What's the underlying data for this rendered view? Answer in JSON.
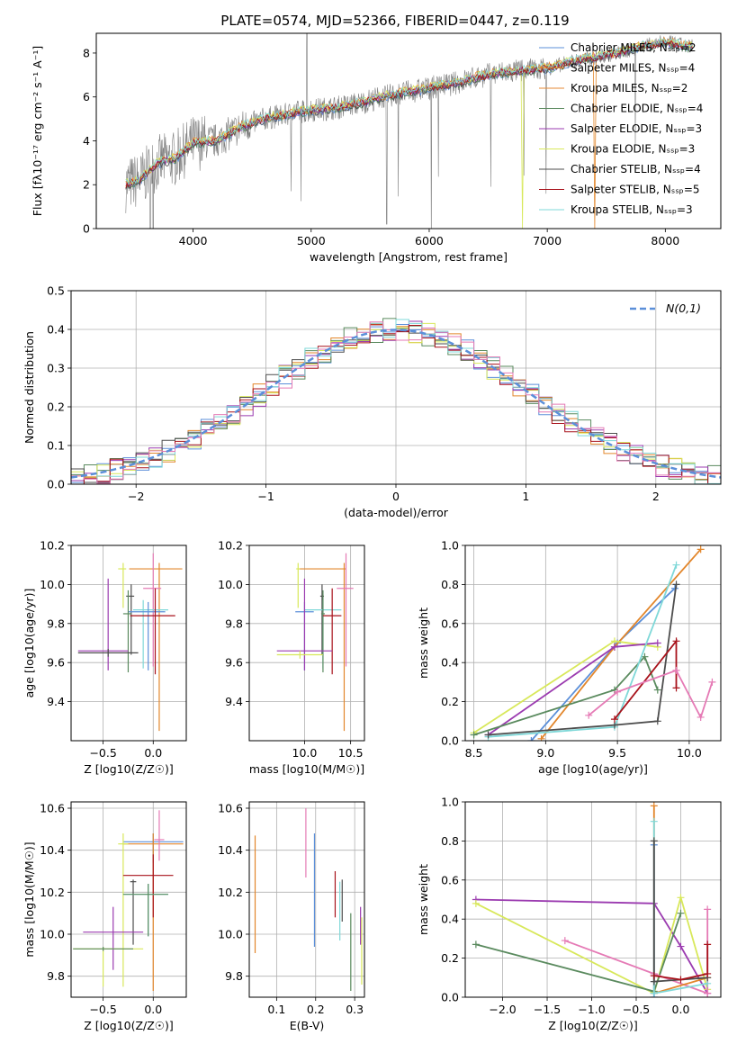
{
  "colors": {
    "chabrier_miles": "#5b8fd9",
    "salpeter_miles": "#e2862b",
    "kroupa_miles": "#e58a35",
    "chabrier_elodie": "#5a8a5e",
    "salpeter_elodie": "#9b3bb0",
    "kroupa_elodie": "#d8e85a",
    "chabrier_stelib": "#4d4d4d",
    "salpeter_stelib": "#a8121b",
    "kroupa_stelib": "#7fd8d8",
    "grey_spectrum": "#7f7f7f",
    "pink": "#e57ab5",
    "normal_curve": "#5b8fd9"
  },
  "chart_data": [
    {
      "id": "spectrum",
      "type": "line",
      "title": "PLATE=0574, MJD=52366, FIBERID=0447, z=0.119",
      "xlabel": "wavelength [Angstrom, rest frame]",
      "ylabel": "Flux [fλ10⁻¹⁷ erg cm⁻² s⁻¹ A⁻¹]",
      "xlim": [
        3180,
        8470
      ],
      "ylim": [
        0,
        8.9
      ],
      "xticks": [
        4000,
        5000,
        6000,
        7000,
        8000
      ],
      "yticks": [
        0,
        2,
        4,
        6,
        8
      ],
      "legend_position": "upper-right",
      "legend": [
        "Chabrier MILES, N_SSP=2",
        "Salpeter MILES, N_SSP=4",
        "Kroupa MILES, N_SSP=2",
        "Chabrier ELODIE, N_SSP=4",
        "Salpeter ELODIE, N_SSP=3",
        "Kroupa ELODIE, N_SSP=3",
        "Chabrier STELIB, N_SSP=4",
        "Salpeter STELIB, N_SSP=5",
        "Kroupa STELIB, N_SSP=3"
      ],
      "continuum_x": [
        3430,
        3550,
        3700,
        3850,
        4000,
        4200,
        4400,
        4600,
        4800,
        5000,
        5200,
        5400,
        5600,
        5800,
        6000,
        6200,
        6400,
        6600,
        6800,
        7000,
        7200,
        7400,
        7600,
        7800,
        8000,
        8200
      ],
      "continuum_y": [
        2.0,
        2.2,
        3.0,
        3.2,
        3.9,
        4.0,
        4.6,
        5.0,
        5.2,
        5.4,
        5.5,
        5.7,
        6.0,
        6.2,
        6.4,
        6.6,
        6.9,
        7.1,
        7.2,
        7.3,
        7.6,
        7.8,
        8.0,
        8.3,
        8.5,
        8.3
      ]
    },
    {
      "id": "residuals",
      "type": "histogram",
      "xlabel": "(data-model)/error",
      "ylabel": "Normed distribution",
      "xlim": [
        -2.5,
        2.5
      ],
      "ylim": [
        0,
        0.5
      ],
      "xticks": [
        -2,
        -1,
        0,
        1,
        2
      ],
      "yticks": [
        0.0,
        0.1,
        0.2,
        0.3,
        0.4,
        0.5
      ],
      "legend": [
        "N(0,1)"
      ],
      "legend_position": "upper-right",
      "bin_width": 0.1
    },
    {
      "id": "age_vs_Z",
      "type": "errorbar",
      "xlabel": "Z [log10(Z/Z☉)]",
      "ylabel": "age [log10(age/yr)]",
      "xlim": [
        -0.82,
        0.33
      ],
      "ylim": [
        9.2,
        10.2
      ],
      "xticks": [
        -0.5,
        0.0
      ],
      "yticks": [
        9.4,
        9.6,
        9.8,
        10.0,
        10.2
      ],
      "points": [
        {
          "key": "salpeter_miles",
          "x": 0.06,
          "xerr": [
            0.3,
            0.23
          ],
          "y": 10.08,
          "yerr": [
            0.83,
            0.03
          ]
        },
        {
          "key": "kroupa_elodie",
          "x": -0.3,
          "xerr": [
            0.05,
            0.03
          ],
          "y": 10.08,
          "yerr": [
            0.2,
            0.03
          ]
        },
        {
          "key": "pink",
          "x": 0.0,
          "xerr": [
            0.1,
            0.08
          ],
          "y": 9.98,
          "yerr": [
            0.4,
            0.18
          ]
        },
        {
          "key": "chabrier_stelib",
          "x": -0.22,
          "xerr": [
            0.05,
            0.03
          ],
          "y": 9.94,
          "yerr": [
            0.3,
            0.06
          ]
        },
        {
          "key": "kroupa_stelib",
          "x": -0.1,
          "xerr": [
            0.1,
            0.25
          ],
          "y": 9.87,
          "yerr": [
            0.3,
            0.05
          ]
        },
        {
          "key": "chabrier_miles",
          "x": -0.05,
          "xerr": [
            0.2,
            0.17
          ],
          "y": 9.86,
          "yerr": [
            0.3,
            0.05
          ]
        },
        {
          "key": "chabrier_elodie",
          "x": -0.25,
          "xerr": [
            0.05,
            0.03
          ],
          "y": 9.85,
          "yerr": [
            0.3,
            0.12
          ]
        },
        {
          "key": "salpeter_stelib",
          "x": 0.02,
          "xerr": [
            0.25,
            0.2
          ],
          "y": 9.84,
          "yerr": [
            0.3,
            0.14
          ]
        },
        {
          "key": "salpeter_elodie",
          "x": -0.45,
          "xerr": [
            0.3,
            0.2
          ],
          "y": 9.66,
          "yerr": [
            0.1,
            0.37
          ]
        },
        {
          "key": "chabrier_stelib",
          "x": -0.45,
          "xerr": [
            0.3,
            0.3
          ],
          "y": 9.65,
          "yerr": [
            0.02,
            0.02
          ]
        }
      ]
    },
    {
      "id": "age_vs_mass",
      "type": "errorbar",
      "xlabel": "mass [log10(M/M☉)]",
      "ylabel": "",
      "xlim": [
        9.4,
        10.65
      ],
      "ylim": [
        9.2,
        10.2
      ],
      "xticks": [
        10.0,
        10.5
      ],
      "yticks": [
        9.4,
        9.6,
        9.8,
        10.0,
        10.2
      ],
      "points": [
        {
          "key": "salpeter_miles",
          "x": 10.43,
          "xerr": [
            0.5,
            0.02
          ],
          "y": 10.08,
          "yerr": [
            0.83,
            0.03
          ]
        },
        {
          "key": "kroupa_elodie",
          "x": 9.93,
          "xerr": [
            0.02,
            0.02
          ],
          "y": 10.08,
          "yerr": [
            0.2,
            0.03
          ]
        },
        {
          "key": "pink",
          "x": 10.45,
          "xerr": [
            0.1,
            0.08
          ],
          "y": 9.98,
          "yerr": [
            0.4,
            0.18
          ]
        },
        {
          "key": "chabrier_stelib",
          "x": 10.19,
          "xerr": [
            0.02,
            0.02
          ],
          "y": 9.94,
          "yerr": [
            0.3,
            0.06
          ]
        },
        {
          "key": "kroupa_stelib",
          "x": 10.2,
          "xerr": [
            0.2,
            0.2
          ],
          "y": 9.87,
          "yerr": [
            0.3,
            0.05
          ]
        },
        {
          "key": "chabrier_miles",
          "x": 10.0,
          "xerr": [
            0.1,
            0.1
          ],
          "y": 9.86,
          "yerr": [
            0.3,
            0.05
          ]
        },
        {
          "key": "chabrier_elodie",
          "x": 10.2,
          "xerr": [
            0.02,
            0.02
          ],
          "y": 9.85,
          "yerr": [
            0.3,
            0.12
          ]
        },
        {
          "key": "salpeter_stelib",
          "x": 10.3,
          "xerr": [
            0.1,
            0.1
          ],
          "y": 9.84,
          "yerr": [
            0.3,
            0.14
          ]
        },
        {
          "key": "salpeter_elodie",
          "x": 10.0,
          "xerr": [
            0.3,
            0.3
          ],
          "y": 9.66,
          "yerr": [
            0.1,
            0.37
          ]
        },
        {
          "key": "kroupa_elodie",
          "x": 9.95,
          "xerr": [
            0.25,
            0.25
          ],
          "y": 9.64,
          "yerr": [
            0.02,
            0.02
          ]
        }
      ]
    },
    {
      "id": "weight_vs_age",
      "type": "line",
      "xlabel": "age  [log10(age/yr)]",
      "ylabel": "mass weight",
      "xlim": [
        8.44,
        10.22
      ],
      "ylim": [
        0,
        1
      ],
      "xticks": [
        8.5,
        9.0,
        9.5,
        10.0
      ],
      "yticks": [
        0.0,
        0.2,
        0.4,
        0.6,
        0.8,
        1.0
      ],
      "series": [
        {
          "key": "chabrier_miles",
          "x": [
            8.9,
            9.5,
            9.9
          ],
          "y": [
            0.0,
            0.5,
            0.78
          ]
        },
        {
          "key": "salpeter_miles",
          "x": [
            8.97,
            9.48,
            10.08
          ],
          "y": [
            0.01,
            0.48,
            0.98
          ]
        },
        {
          "key": "kroupa_elodie",
          "x": [
            8.5,
            9.48,
            9.78
          ],
          "y": [
            0.04,
            0.51,
            0.48
          ]
        },
        {
          "key": "salpeter_elodie",
          "x": [
            8.6,
            9.48,
            9.78
          ],
          "y": [
            0.03,
            0.48,
            0.5
          ]
        },
        {
          "key": "chabrier_elodie",
          "x": [
            8.5,
            9.48,
            9.69,
            9.78
          ],
          "y": [
            0.03,
            0.26,
            0.43,
            0.26
          ]
        },
        {
          "key": "kroupa_stelib",
          "x": [
            8.6,
            9.48,
            9.91
          ],
          "y": [
            0.02,
            0.07,
            0.9
          ]
        },
        {
          "key": "chabrier_stelib",
          "x": [
            8.6,
            9.48,
            9.78,
            9.91
          ],
          "y": [
            0.03,
            0.08,
            0.1,
            0.8
          ]
        },
        {
          "key": "salpeter_stelib",
          "x": [
            9.48,
            9.91,
            9.91
          ],
          "y": [
            0.11,
            0.51,
            0.27
          ]
        },
        {
          "key": "pink",
          "x": [
            9.3,
            9.5,
            9.91,
            10.08,
            10.16
          ],
          "y": [
            0.13,
            0.25,
            0.36,
            0.12,
            0.3
          ]
        }
      ]
    },
    {
      "id": "mass_vs_Z",
      "type": "errorbar",
      "xlabel": "Z [log10(Z/Z☉)]",
      "ylabel": "mass [log10(M/M☉)]",
      "xlim": [
        -0.82,
        0.33
      ],
      "ylim": [
        9.7,
        10.63
      ],
      "xticks": [
        -0.5,
        0.0
      ],
      "yticks": [
        9.8,
        10.0,
        10.2,
        10.4,
        10.6
      ],
      "points": [
        {
          "key": "chabrier_miles",
          "x": 0.0,
          "xerr": [
            0.3,
            0.3
          ],
          "y": 10.44,
          "yerr": [
            0.1,
            0.04
          ]
        },
        {
          "key": "salpeter_miles",
          "x": 0.0,
          "xerr": [
            0.3,
            0.3
          ],
          "y": 10.43,
          "yerr": [
            0.7,
            0.05
          ]
        },
        {
          "key": "pink",
          "x": 0.06,
          "xerr": [
            0.05,
            0.05
          ],
          "y": 10.45,
          "yerr": [
            0.1,
            0.14
          ]
        },
        {
          "key": "kroupa_elodie",
          "x": -0.3,
          "xerr": [
            0.05,
            0.05
          ],
          "y": 10.43,
          "yerr": [
            0.68,
            0.05
          ]
        },
        {
          "key": "salpeter_stelib",
          "x": 0.0,
          "xerr": [
            0.3,
            0.2
          ],
          "y": 10.28,
          "yerr": [
            0.2,
            0.1
          ]
        },
        {
          "key": "chabrier_stelib",
          "x": -0.2,
          "xerr": [
            0.03,
            0.03
          ],
          "y": 10.25,
          "yerr": [
            0.3,
            0.01
          ]
        },
        {
          "key": "kroupa_stelib",
          "x": -0.05,
          "xerr": [
            0.25,
            0.2
          ],
          "y": 10.19,
          "yerr": [
            0.2,
            0.05
          ]
        },
        {
          "key": "chabrier_elodie",
          "x": -0.05,
          "xerr": [
            0.25,
            0.2
          ],
          "y": 10.19,
          "yerr": [
            0.2,
            0.05
          ]
        },
        {
          "key": "salpeter_elodie",
          "x": -0.4,
          "xerr": [
            0.3,
            0.3
          ],
          "y": 10.01,
          "yerr": [
            0.18,
            0.12
          ]
        },
        {
          "key": "kroupa_elodie",
          "x": -0.5,
          "xerr": [
            0.3,
            0.4
          ],
          "y": 9.93,
          "yerr": [
            0.18,
            0.01
          ]
        },
        {
          "key": "chabrier_elodie",
          "x": -0.5,
          "xerr": [
            0.3,
            0.3
          ],
          "y": 9.93,
          "yerr": [
            0.01,
            0.01
          ]
        }
      ]
    },
    {
      "id": "mass_vs_EBV",
      "type": "errorbar",
      "xlabel": "E(B-V)",
      "ylabel": "",
      "xlim": [
        0.03,
        0.325
      ],
      "ylim": [
        9.7,
        10.63
      ],
      "xticks": [
        0.1,
        0.2,
        0.3
      ],
      "yticks": [
        9.8,
        10.0,
        10.2,
        10.4,
        10.6
      ],
      "points": [
        {
          "key": "salpeter_miles",
          "x": 0.045,
          "y0": 9.91,
          "y1": 10.47
        },
        {
          "key": "pink",
          "x": 0.175,
          "y0": 10.27,
          "y1": 10.6
        },
        {
          "key": "chabrier_miles",
          "x": 0.197,
          "y0": 9.94,
          "y1": 10.48
        },
        {
          "key": "salpeter_stelib",
          "x": 0.25,
          "y0": 10.08,
          "y1": 10.3
        },
        {
          "key": "kroupa_stelib",
          "x": 0.262,
          "y0": 9.97,
          "y1": 10.25
        },
        {
          "key": "chabrier_stelib",
          "x": 0.268,
          "y0": 10.06,
          "y1": 10.26
        },
        {
          "key": "chabrier_elodie",
          "x": 0.29,
          "y0": 9.73,
          "y1": 10.1
        },
        {
          "key": "salpeter_elodie",
          "x": 0.315,
          "y0": 9.95,
          "y1": 10.13
        },
        {
          "key": "kroupa_elodie",
          "x": 0.318,
          "y0": 9.76,
          "y1": 10.08
        }
      ]
    },
    {
      "id": "weight_vs_Z",
      "type": "line",
      "xlabel": "Z [log10(Z/Z☉)]",
      "ylabel": "mass weight",
      "xlim": [
        -2.42,
        0.45
      ],
      "ylim": [
        0,
        1
      ],
      "xticks": [
        -2.0,
        -1.5,
        -1.0,
        -0.5,
        0.0
      ],
      "yticks": [
        0.0,
        0.2,
        0.4,
        0.6,
        0.8,
        1.0
      ],
      "series": [
        {
          "key": "salpeter_elodie",
          "x": [
            -2.3,
            -0.3,
            0.0,
            0.3
          ],
          "y": [
            0.5,
            0.48,
            0.26,
            0.02
          ]
        },
        {
          "key": "kroupa_elodie",
          "x": [
            -2.3,
            -0.3,
            0.0,
            0.3
          ],
          "y": [
            0.48,
            0.02,
            0.51,
            0.04
          ]
        },
        {
          "key": "chabrier_elodie",
          "x": [
            -2.3,
            -0.3,
            0.0
          ],
          "y": [
            0.27,
            0.03,
            0.43
          ]
        },
        {
          "key": "pink",
          "x": [
            -1.3,
            -0.3,
            0.3,
            0.3
          ],
          "y": [
            0.29,
            0.12,
            0.02,
            0.45
          ]
        },
        {
          "key": "salpeter_miles",
          "x": [
            -0.3,
            -0.3,
            0.3
          ],
          "y": [
            0.98,
            0.02,
            0.1
          ]
        },
        {
          "key": "chabrier_miles",
          "x": [
            -0.3,
            -0.3
          ],
          "y": [
            0.78,
            0.0
          ]
        },
        {
          "key": "kroupa_stelib",
          "x": [
            -0.3,
            -0.3,
            0.3
          ],
          "y": [
            0.9,
            0.02,
            0.07
          ]
        },
        {
          "key": "chabrier_stelib",
          "x": [
            -0.3,
            -0.3,
            0.3
          ],
          "y": [
            0.8,
            0.08,
            0.1
          ]
        },
        {
          "key": "salpeter_stelib",
          "x": [
            -0.3,
            0.0,
            0.3,
            0.3
          ],
          "y": [
            0.11,
            0.09,
            0.12,
            0.27
          ]
        }
      ]
    }
  ]
}
